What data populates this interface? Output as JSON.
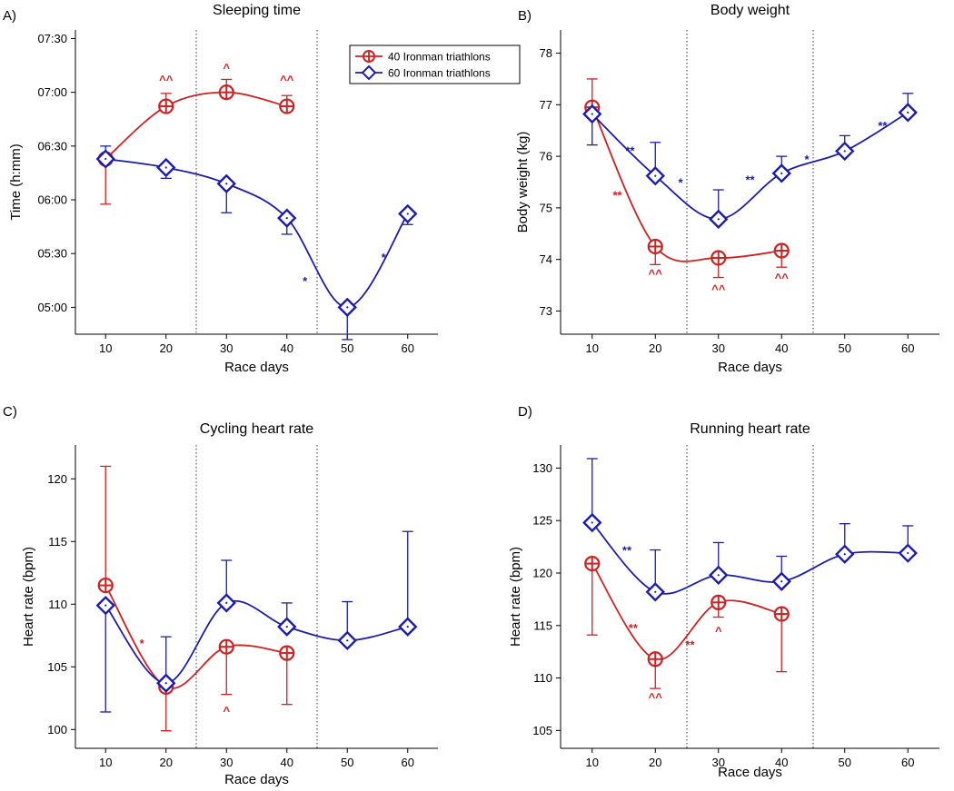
{
  "colors": {
    "series40": "#cc2222",
    "series60": "#1c1caa",
    "axis": "#000000",
    "divider": "#333333"
  },
  "legend": {
    "s40": "40 Ironman triathlons",
    "s60": "60 Ironman triathlons"
  },
  "chart_data": [
    {
      "id": "A",
      "panel_label": "A)",
      "type": "line",
      "title": "Sleeping time",
      "xlabel": "Race days",
      "ylabel": "Time (h:mm)",
      "xlim": [
        5,
        65
      ],
      "ylim": [
        4.75,
        7.58
      ],
      "xticks": [
        10,
        20,
        30,
        40,
        50,
        60
      ],
      "yticks": [
        5.0,
        5.5,
        6.0,
        6.5,
        7.0,
        7.5
      ],
      "yticklabels": [
        "05:00",
        "05:30",
        "06:00",
        "06:30",
        "07:00",
        "07:30"
      ],
      "dividers": [
        25,
        45
      ],
      "show_legend": true,
      "legend_position": "top-right",
      "series": [
        {
          "name": "40 Ironman triathlons",
          "x": [
            10,
            20,
            30,
            40
          ],
          "values": [
            6.38,
            6.87,
            7.0,
            6.87
          ],
          "err_up": [
            0,
            0.12,
            0.12,
            0.1
          ],
          "err_down": [
            0.42,
            0,
            0,
            0
          ]
        },
        {
          "name": "60 Ironman triathlons",
          "x": [
            10,
            20,
            30,
            40,
            50,
            60
          ],
          "values": [
            6.38,
            6.3,
            6.15,
            5.83,
            5.0,
            5.87
          ],
          "err_up": [
            0.12,
            0,
            0,
            0,
            0,
            0
          ],
          "err_down": [
            0,
            0.1,
            0.27,
            0.15,
            0.3,
            0.1
          ]
        }
      ],
      "annotations": [
        {
          "text": "^^",
          "series": 0,
          "x": 20,
          "y": 7.12
        },
        {
          "text": "^",
          "series": 0,
          "x": 30,
          "y": 7.23
        },
        {
          "text": "^^",
          "series": 0,
          "x": 40,
          "y": 7.12
        },
        {
          "text": "*",
          "series": 1,
          "x": 43,
          "y": 5.25
        },
        {
          "text": "*",
          "series": 1,
          "x": 56,
          "y": 5.47
        }
      ]
    },
    {
      "id": "B",
      "panel_label": "B)",
      "type": "line",
      "title": "Body weight",
      "xlabel": "Race days",
      "ylabel": "Body weight (kg)",
      "xlim": [
        5,
        65
      ],
      "ylim": [
        72.55,
        78.45
      ],
      "xticks": [
        10,
        20,
        30,
        40,
        50,
        60
      ],
      "yticks": [
        73,
        74,
        75,
        76,
        77,
        78
      ],
      "yticklabels": [
        "73",
        "74",
        "75",
        "76",
        "77",
        "78"
      ],
      "dividers": [
        25,
        45
      ],
      "show_legend": false,
      "series": [
        {
          "name": "40 Ironman triathlons",
          "x": [
            10,
            20,
            30,
            40
          ],
          "values": [
            76.95,
            74.25,
            74.03,
            74.17
          ],
          "err_up": [
            0.55,
            0,
            0,
            0
          ],
          "err_down": [
            0,
            0.35,
            0.38,
            0.32
          ]
        },
        {
          "name": "60 Ironman triathlons",
          "x": [
            10,
            20,
            30,
            40,
            50,
            60
          ],
          "values": [
            76.82,
            75.62,
            74.78,
            75.67,
            76.1,
            76.85
          ],
          "err_up": [
            0,
            0.65,
            0.57,
            0.33,
            0.3,
            0.37
          ],
          "err_down": [
            0.6,
            0,
            0,
            0,
            0,
            0
          ]
        }
      ],
      "annotations": [
        {
          "text": "**",
          "series": 1,
          "x": 16,
          "y": 76.12
        },
        {
          "text": "**",
          "series": 0,
          "x": 14,
          "y": 75.25
        },
        {
          "text": "*",
          "series": 1,
          "x": 24,
          "y": 75.5
        },
        {
          "text": "**",
          "series": 1,
          "x": 35,
          "y": 75.55
        },
        {
          "text": "*",
          "series": 1,
          "x": 44,
          "y": 75.95
        },
        {
          "text": "**",
          "series": 1,
          "x": 56,
          "y": 76.6
        },
        {
          "text": "^^",
          "series": 0,
          "x": 20,
          "y": 73.73
        },
        {
          "text": "^^",
          "series": 0,
          "x": 30,
          "y": 73.43
        },
        {
          "text": "^^",
          "series": 0,
          "x": 40,
          "y": 73.65
        }
      ]
    },
    {
      "id": "C",
      "panel_label": "C)",
      "type": "line",
      "title": "Cycling heart rate",
      "xlabel": "Race days",
      "ylabel": "Heart rate (bpm)",
      "xlim": [
        5,
        65
      ],
      "ylim": [
        98.5,
        122.7
      ],
      "xticks": [
        10,
        20,
        30,
        40,
        50,
        60
      ],
      "yticks": [
        100,
        105,
        110,
        115,
        120
      ],
      "yticklabels": [
        "100",
        "105",
        "110",
        "115",
        "120"
      ],
      "dividers": [
        25,
        45
      ],
      "show_legend": false,
      "series": [
        {
          "name": "40 Ironman triathlons",
          "x": [
            10,
            20,
            30,
            40
          ],
          "values": [
            111.5,
            103.4,
            106.6,
            106.1
          ],
          "err_up": [
            9.5,
            0,
            0,
            0
          ],
          "err_down": [
            0,
            3.5,
            3.8,
            4.1
          ]
        },
        {
          "name": "60 Ironman triathlons",
          "x": [
            10,
            20,
            30,
            40,
            50,
            60
          ],
          "values": [
            109.9,
            103.7,
            110.1,
            108.2,
            107.1,
            108.2
          ],
          "err_up": [
            0,
            3.7,
            3.4,
            1.9,
            3.1,
            7.6
          ],
          "err_down": [
            8.5,
            0,
            0,
            0,
            0,
            0
          ]
        }
      ],
      "annotations": [
        {
          "text": "*",
          "series": 0,
          "x": 16,
          "y": 106.9
        },
        {
          "text": "^",
          "series": 0,
          "x": 30,
          "y": 101.5
        }
      ]
    },
    {
      "id": "D",
      "panel_label": "D)",
      "type": "line",
      "title": "Running heart rate",
      "xlabel": "Race days",
      "ylabel": "Heart rate (bpm)",
      "xlim": [
        5,
        65
      ],
      "ylim": [
        103.3,
        132.2
      ],
      "xticks": [
        10,
        20,
        30,
        40,
        50,
        60
      ],
      "yticks": [
        105,
        110,
        115,
        120,
        125,
        130
      ],
      "yticklabels": [
        "105",
        "110",
        "115",
        "120",
        "125",
        "130"
      ],
      "dividers": [
        25,
        45
      ],
      "show_legend": false,
      "series": [
        {
          "name": "40 Ironman triathlons",
          "x": [
            10,
            20,
            30,
            40
          ],
          "values": [
            120.9,
            111.8,
            117.2,
            116.1
          ],
          "err_up": [
            0,
            0,
            0,
            0
          ],
          "err_down": [
            6.8,
            2.8,
            1.4,
            5.5
          ]
        },
        {
          "name": "60 Ironman triathlons",
          "x": [
            10,
            20,
            30,
            40,
            50,
            60
          ],
          "values": [
            124.8,
            118.2,
            119.8,
            119.2,
            121.8,
            121.9
          ],
          "err_up": [
            6.1,
            4.0,
            3.1,
            2.4,
            2.9,
            2.6
          ],
          "err_down": [
            0,
            0,
            0,
            0,
            0,
            0
          ]
        }
      ],
      "annotations": [
        {
          "text": "**",
          "series": 1,
          "x": 15.5,
          "y": 122.2
        },
        {
          "text": "**",
          "series": 0,
          "x": 16.5,
          "y": 114.8
        },
        {
          "text": "**",
          "series": 0,
          "x": 25.5,
          "y": 113.2
        },
        {
          "text": "^",
          "series": 0,
          "x": 30,
          "y": 114.5
        },
        {
          "text": "^^",
          "series": 0,
          "x": 20,
          "y": 108.2
        }
      ]
    }
  ]
}
